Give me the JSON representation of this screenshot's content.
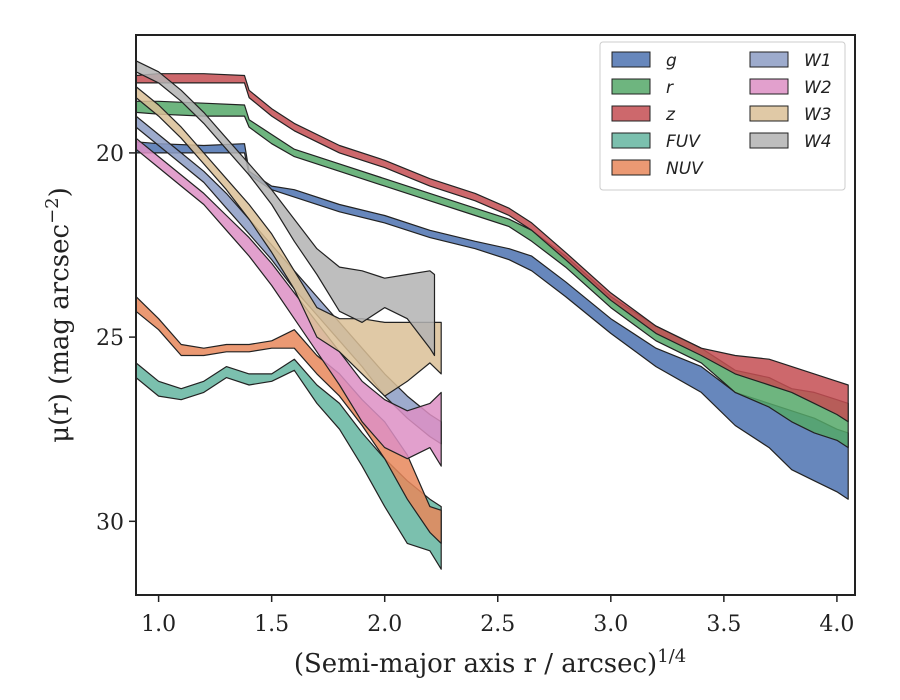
{
  "chart_data": {
    "type": "area",
    "xlabel": "(Semi-major axis r / arcsec)",
    "xlabel_exponent": "1/4",
    "ylabel": "μ(r) (mag arcsec",
    "ylabel_exponent": "−2",
    "ylabel_close": ")",
    "xlim": [
      0.9,
      4.08
    ],
    "ylim": [
      32.0,
      16.8
    ],
    "y_inverted": true,
    "xticks": [
      1.0,
      1.5,
      2.0,
      2.5,
      3.0,
      3.5,
      4.0
    ],
    "xtick_labels": [
      "1.0",
      "1.5",
      "2.0",
      "2.5",
      "3.0",
      "3.5",
      "4.0"
    ],
    "yticks": [
      20,
      25,
      30
    ],
    "ytick_labels": [
      "20",
      "25",
      "30"
    ],
    "grid": false,
    "legend_position": "top-right",
    "legend_columns": 2,
    "series": [
      {
        "name": "g",
        "color": "#4c72b0",
        "x": [
          0.9,
          1.0,
          1.2,
          1.38,
          1.4,
          1.5,
          1.6,
          1.8,
          2.0,
          2.2,
          2.4,
          2.55,
          2.65,
          2.8,
          3.0,
          3.2,
          3.4,
          3.55,
          3.7,
          3.8,
          3.9,
          4.0,
          4.05
        ],
        "top": [
          19.7,
          19.75,
          19.8,
          19.75,
          20.5,
          20.9,
          21.0,
          21.4,
          21.7,
          22.1,
          22.4,
          22.6,
          22.8,
          23.5,
          24.5,
          25.3,
          25.8,
          26.5,
          26.8,
          27.0,
          27.2,
          27.5,
          27.6
        ],
        "bottom": [
          20.0,
          20.0,
          20.0,
          20.0,
          20.6,
          21.0,
          21.2,
          21.6,
          21.9,
          22.3,
          22.6,
          22.9,
          23.2,
          23.9,
          24.9,
          25.8,
          26.5,
          27.4,
          28.0,
          28.6,
          28.9,
          29.2,
          29.4
        ]
      },
      {
        "name": "r",
        "color": "#55a868",
        "x": [
          0.9,
          1.0,
          1.2,
          1.38,
          1.4,
          1.5,
          1.6,
          1.8,
          2.0,
          2.2,
          2.4,
          2.55,
          2.65,
          2.8,
          3.0,
          3.2,
          3.4,
          3.55,
          3.7,
          3.8,
          3.9,
          4.0,
          4.05
        ],
        "top": [
          18.6,
          18.6,
          18.65,
          18.7,
          19.1,
          19.5,
          19.9,
          20.3,
          20.7,
          21.1,
          21.5,
          21.8,
          22.1,
          22.8,
          23.9,
          24.7,
          25.3,
          25.9,
          26.1,
          26.4,
          26.5,
          26.7,
          26.8
        ],
        "bottom": [
          18.9,
          18.95,
          19.0,
          19.0,
          19.3,
          19.75,
          20.1,
          20.5,
          20.9,
          21.3,
          21.7,
          22.0,
          22.4,
          23.1,
          24.2,
          25.1,
          25.7,
          26.5,
          26.9,
          27.3,
          27.6,
          27.8,
          28.0
        ]
      },
      {
        "name": "z",
        "color": "#c44e52",
        "x": [
          0.9,
          1.0,
          1.2,
          1.38,
          1.4,
          1.5,
          1.6,
          1.8,
          2.0,
          2.2,
          2.4,
          2.55,
          2.65,
          2.8,
          3.0,
          3.2,
          3.4,
          3.55,
          3.7,
          3.8,
          3.9,
          4.0,
          4.05
        ],
        "top": [
          17.9,
          17.85,
          17.85,
          17.9,
          18.3,
          18.8,
          19.2,
          19.8,
          20.2,
          20.7,
          21.1,
          21.5,
          21.9,
          22.7,
          23.8,
          24.7,
          25.3,
          25.5,
          25.6,
          25.8,
          26.0,
          26.2,
          26.3
        ],
        "bottom": [
          18.1,
          18.1,
          18.1,
          18.1,
          18.5,
          19.0,
          19.4,
          20.0,
          20.4,
          20.9,
          21.3,
          21.7,
          22.1,
          22.9,
          24.0,
          24.9,
          25.5,
          26.0,
          26.3,
          26.5,
          26.8,
          27.1,
          27.3
        ]
      },
      {
        "name": "FUV",
        "color": "#64b5a0",
        "x": [
          0.9,
          1.0,
          1.1,
          1.2,
          1.3,
          1.4,
          1.5,
          1.6,
          1.7,
          1.8,
          1.9,
          2.0,
          2.1,
          2.2,
          2.25
        ],
        "top": [
          25.7,
          26.2,
          26.4,
          26.2,
          25.8,
          26.0,
          26.0,
          25.6,
          26.3,
          26.8,
          27.6,
          28.3,
          28.9,
          29.4,
          29.6
        ],
        "bottom": [
          26.1,
          26.6,
          26.7,
          26.5,
          26.1,
          26.3,
          26.2,
          25.9,
          26.8,
          27.5,
          28.5,
          29.6,
          30.6,
          30.8,
          31.3
        ]
      },
      {
        "name": "NUV",
        "color": "#e8875b",
        "x": [
          0.9,
          1.0,
          1.1,
          1.2,
          1.3,
          1.4,
          1.5,
          1.6,
          1.7,
          1.8,
          1.9,
          2.0,
          2.1,
          2.2,
          2.25
        ],
        "top": [
          23.9,
          24.5,
          25.2,
          25.3,
          25.2,
          25.2,
          25.1,
          24.8,
          25.5,
          26.0,
          26.7,
          27.3,
          28.2,
          29.6,
          29.7
        ],
        "bottom": [
          24.3,
          24.8,
          25.5,
          25.5,
          25.4,
          25.4,
          25.3,
          25.3,
          26.0,
          26.6,
          27.4,
          28.3,
          29.4,
          30.3,
          30.6
        ]
      },
      {
        "name": "W1",
        "color": "#8c9cc4",
        "x": [
          0.9,
          1.0,
          1.1,
          1.2,
          1.3,
          1.4,
          1.5,
          1.6,
          1.7,
          1.8,
          1.9,
          2.0,
          2.1,
          2.2,
          2.25
        ],
        "top": [
          19.0,
          19.5,
          20.0,
          20.5,
          21.1,
          21.8,
          22.5,
          23.2,
          23.9,
          24.6,
          25.3,
          26.0,
          26.6,
          27.1,
          27.3
        ],
        "bottom": [
          19.3,
          19.8,
          20.3,
          20.8,
          21.5,
          22.2,
          22.9,
          23.7,
          24.4,
          25.1,
          25.8,
          26.6,
          27.2,
          27.7,
          27.9
        ]
      },
      {
        "name": "W2",
        "color": "#dd8fc4",
        "x": [
          0.9,
          1.0,
          1.1,
          1.2,
          1.3,
          1.4,
          1.5,
          1.6,
          1.7,
          1.8,
          1.9,
          2.0,
          2.1,
          2.2,
          2.25
        ],
        "top": [
          19.6,
          20.1,
          20.6,
          21.1,
          21.7,
          22.3,
          23.0,
          23.8,
          24.6,
          25.4,
          26.2,
          26.7,
          27.0,
          26.8,
          26.5
        ],
        "bottom": [
          19.9,
          20.4,
          20.9,
          21.4,
          22.1,
          22.8,
          23.6,
          24.5,
          25.4,
          26.3,
          27.3,
          28.0,
          28.3,
          28.0,
          28.5
        ]
      },
      {
        "name": "W3",
        "color": "#dbbf96",
        "x": [
          0.9,
          1.0,
          1.1,
          1.2,
          1.3,
          1.4,
          1.5,
          1.6,
          1.7,
          1.8,
          1.9,
          2.0,
          2.1,
          2.2,
          2.25
        ],
        "top": [
          18.2,
          18.7,
          19.3,
          20.0,
          20.7,
          21.4,
          22.2,
          23.2,
          24.2,
          24.5,
          24.5,
          24.6,
          24.6,
          24.6,
          24.6
        ],
        "bottom": [
          18.5,
          19.0,
          19.6,
          20.3,
          21.0,
          21.8,
          22.7,
          23.7,
          25.0,
          25.4,
          26.0,
          26.6,
          26.2,
          25.7,
          26.0
        ]
      },
      {
        "name": "W4",
        "color": "#b3b3b3",
        "x": [
          0.9,
          1.0,
          1.1,
          1.2,
          1.3,
          1.4,
          1.5,
          1.6,
          1.7,
          1.8,
          1.9,
          2.0,
          2.1,
          2.2,
          2.22
        ],
        "top": [
          17.5,
          17.8,
          18.3,
          18.9,
          19.6,
          20.3,
          21.0,
          21.8,
          22.6,
          23.1,
          23.2,
          23.4,
          23.3,
          23.2,
          23.3
        ],
        "bottom": [
          17.8,
          18.1,
          18.6,
          19.2,
          19.9,
          20.6,
          21.4,
          22.4,
          23.3,
          24.3,
          24.6,
          24.2,
          24.5,
          25.3,
          25.5
        ]
      }
    ]
  }
}
